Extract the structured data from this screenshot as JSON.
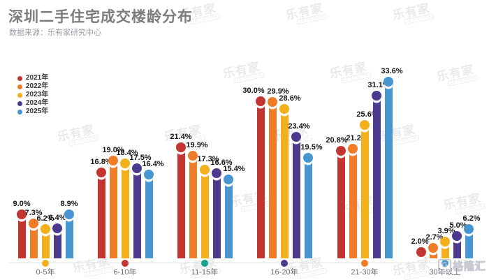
{
  "header": {
    "title": "深圳二手住宅成交楼龄分布",
    "subtitle": "数据来源：乐有家研究中心"
  },
  "watermark": {
    "text": "乐有家",
    "subtext": "LEYOUJIA"
  },
  "logo": {
    "icon": "G",
    "text": "格隆汇"
  },
  "chart_data": {
    "type": "bar",
    "title": "深圳二手住宅成交楼龄分布",
    "categories": [
      "0-5年",
      "6-10年",
      "11-15年",
      "16-20年",
      "21-30年",
      "30年以上"
    ],
    "series": [
      {
        "name": "2021年",
        "color": "#c23531",
        "values": [
          9.0,
          16.8,
          21.4,
          30.0,
          20.8,
          2.0
        ]
      },
      {
        "name": "2022年",
        "color": "#ef7d27",
        "values": [
          7.3,
          19.0,
          19.9,
          29.9,
          21.2,
          2.7
        ]
      },
      {
        "name": "2023年",
        "color": "#f3b01d",
        "values": [
          6.2,
          18.4,
          17.3,
          28.6,
          25.6,
          3.9
        ]
      },
      {
        "name": "2024年",
        "color": "#4c3a8e",
        "values": [
          6.4,
          17.5,
          16.6,
          23.4,
          31.1,
          5.0
        ]
      },
      {
        "name": "2025年",
        "color": "#4796d2",
        "values": [
          8.9,
          16.4,
          15.4,
          19.5,
          33.6,
          6.2
        ]
      }
    ],
    "value_suffix": "%",
    "value_label_decimals": 1,
    "category_dot_colors": [
      "#f3b01d",
      "#c23531",
      "#17a08a",
      "#4c3a8e",
      "#ef7d27",
      "#4796d2"
    ],
    "ylim": [
      0,
      35
    ],
    "grid": false,
    "legend_position": "left",
    "xlabel": "",
    "ylabel": ""
  }
}
